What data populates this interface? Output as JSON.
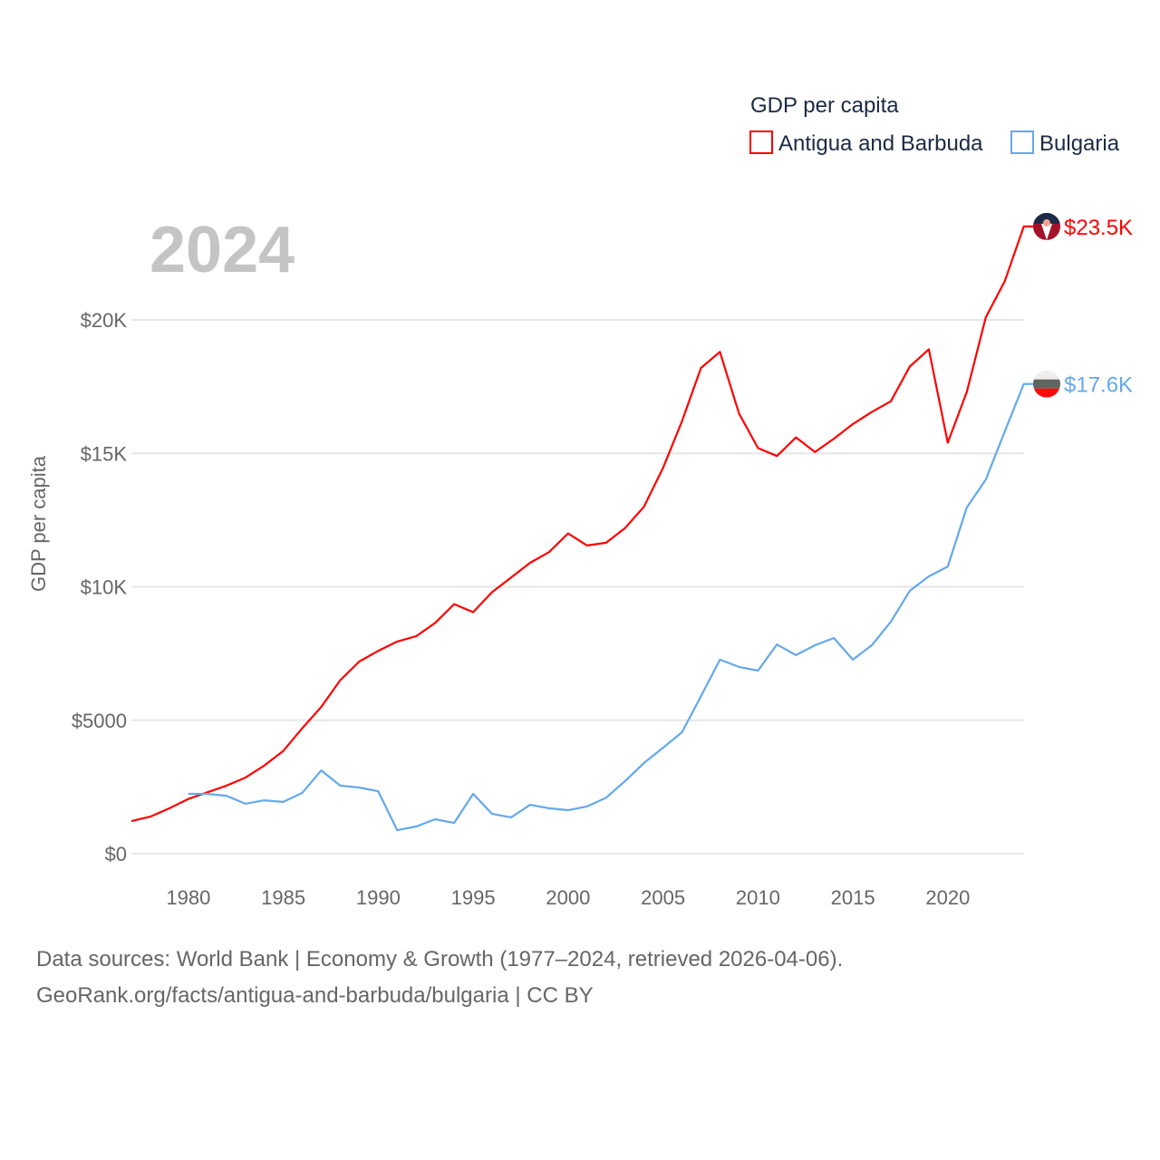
{
  "chart_data": {
    "type": "line",
    "title": "GDP per capita",
    "year_label": "2024",
    "ylabel": "GDP per capita",
    "xlabel": "",
    "xlim": [
      1977,
      2024
    ],
    "ylim": [
      0,
      25000
    ],
    "grid": true,
    "legend_position": "top-right",
    "x_ticks": [
      1980,
      1985,
      1990,
      1995,
      2000,
      2005,
      2010,
      2015,
      2020
    ],
    "y_ticks": [
      {
        "value": 0,
        "label": "$0"
      },
      {
        "value": 5000,
        "label": "$5000"
      },
      {
        "value": 10000,
        "label": "$10K"
      },
      {
        "value": 15000,
        "label": "$15K"
      },
      {
        "value": 20000,
        "label": "$20K"
      }
    ],
    "series": [
      {
        "name": "Antigua and Barbuda",
        "color": "#ff0000",
        "end_label": "$23.5K",
        "x": [
          1977,
          1978,
          1979,
          1980,
          1981,
          1982,
          1983,
          1984,
          1985,
          1986,
          1987,
          1988,
          1989,
          1990,
          1991,
          1992,
          1993,
          1994,
          1995,
          1996,
          1997,
          1998,
          1999,
          2000,
          2001,
          2002,
          2003,
          2004,
          2005,
          2006,
          2007,
          2008,
          2009,
          2010,
          2011,
          2012,
          2013,
          2014,
          2015,
          2016,
          2017,
          2018,
          2019,
          2020,
          2021,
          2022,
          2023,
          2024
        ],
        "values": [
          1220,
          1390,
          1700,
          2050,
          2300,
          2550,
          2850,
          3300,
          3850,
          4700,
          5500,
          6500,
          7200,
          7600,
          7950,
          8150,
          8650,
          9350,
          9050,
          9800,
          10350,
          10900,
          11300,
          12000,
          11550,
          11650,
          12200,
          13000,
          14450,
          16200,
          18200,
          18800,
          16500,
          15200,
          14900,
          15600,
          15050,
          15550,
          16100,
          16550,
          16950,
          18250,
          18900,
          15400,
          17300,
          20100,
          21450,
          23500
        ]
      },
      {
        "name": "Bulgaria",
        "color": "#64a8ec",
        "end_label": "$17.6K",
        "x": [
          1980,
          1981,
          1982,
          1983,
          1984,
          1985,
          1986,
          1987,
          1988,
          1989,
          1990,
          1991,
          1992,
          1993,
          1994,
          1995,
          1996,
          1997,
          1998,
          1999,
          2000,
          2001,
          2002,
          2003,
          2004,
          2005,
          2006,
          2007,
          2008,
          2009,
          2010,
          2011,
          2012,
          2013,
          2014,
          2015,
          2016,
          2017,
          2018,
          2019,
          2020,
          2021,
          2022,
          2023,
          2024
        ],
        "values": [
          2240,
          2240,
          2170,
          1870,
          2000,
          1940,
          2280,
          3120,
          2550,
          2480,
          2340,
          880,
          1020,
          1290,
          1150,
          2240,
          1490,
          1360,
          1830,
          1700,
          1630,
          1770,
          2100,
          2720,
          3400,
          3970,
          4550,
          5900,
          7270,
          7000,
          6860,
          7840,
          7440,
          7810,
          8080,
          7270,
          7810,
          8690,
          9850,
          10390,
          10760,
          12970,
          14020,
          15820,
          17600
        ]
      }
    ]
  },
  "footer": {
    "line1": "Data sources: World Bank | Economy & Growth (1977–2024, retrieved 2026-04-06).",
    "line2": "GeoRank.org/facts/antigua-and-barbuda/bulgaria | CC BY"
  }
}
